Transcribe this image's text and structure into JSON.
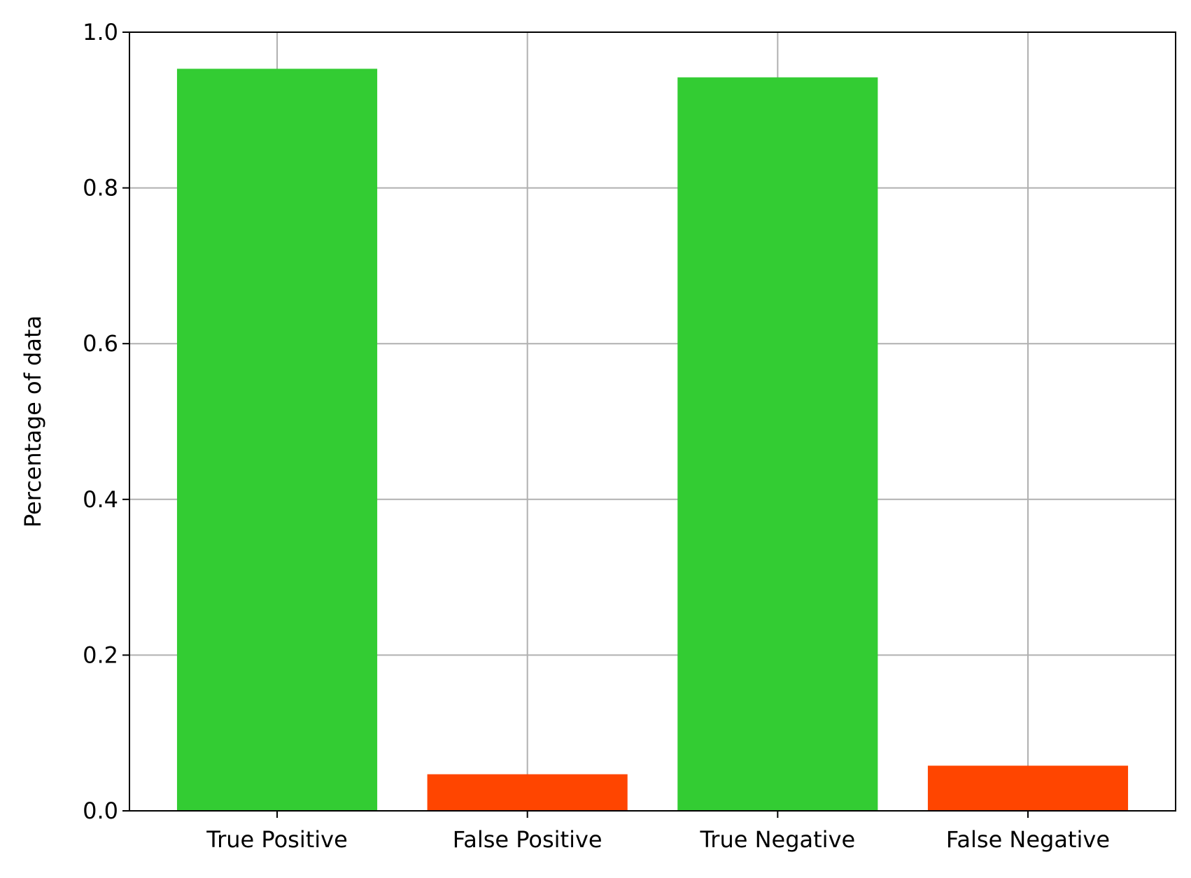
{
  "chart_data": {
    "type": "bar",
    "title": "",
    "xlabel": "",
    "ylabel": "Percentage of data",
    "categories": [
      "True Positive",
      "False Positive",
      "True Negative",
      "False Negative"
    ],
    "values": [
      0.953,
      0.047,
      0.942,
      0.058
    ],
    "colors": [
      "#33cc33",
      "#ff4500",
      "#33cc33",
      "#ff4500"
    ],
    "ylim": [
      0,
      1.0
    ],
    "yticks": [
      "0.0",
      "0.2",
      "0.4",
      "0.6",
      "0.8",
      "1.0"
    ],
    "grid": true,
    "legend": "none"
  }
}
